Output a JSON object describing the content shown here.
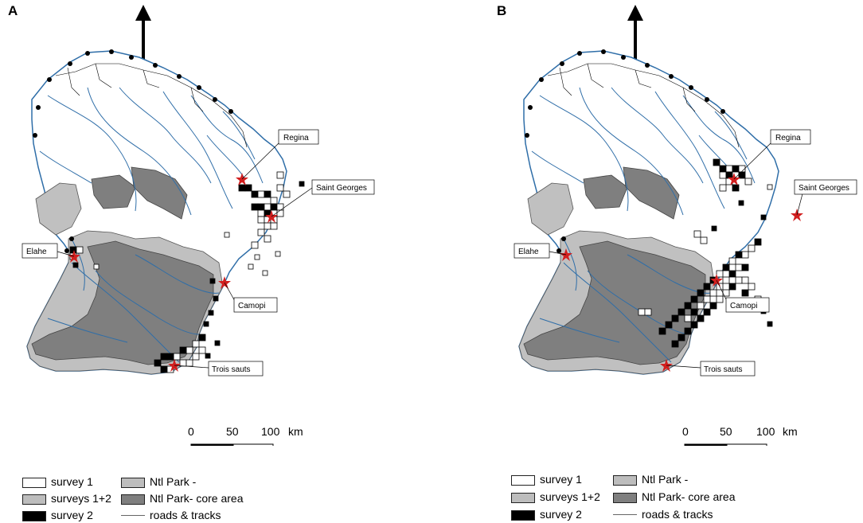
{
  "panels": [
    {
      "letter": "A",
      "places": [
        {
          "name": "Regina"
        },
        {
          "name": "Saint Georges"
        },
        {
          "name": "Elahe"
        },
        {
          "name": "Camopi"
        },
        {
          "name": "Trois sauts"
        }
      ],
      "scale": {
        "ticks": [
          "0",
          "50",
          "100"
        ],
        "unit": "km"
      },
      "legend": [
        {
          "label": "survey 1",
          "swatch": "#ffffff"
        },
        {
          "label": "surveys 1+2",
          "swatch": "#bdbdbd"
        },
        {
          "label": "survey 2",
          "swatch": "#000000"
        },
        {
          "label": "Ntl Park -",
          "swatch": "#bdbdbd"
        },
        {
          "label": "Ntl Park- core area",
          "swatch": "#7f7f7f"
        },
        {
          "label": "roads & tracks",
          "swatch": "line"
        }
      ]
    },
    {
      "letter": "B",
      "places": [
        {
          "name": "Regina"
        },
        {
          "name": "Saint Georges"
        },
        {
          "name": "Elahe"
        },
        {
          "name": "Camopi"
        },
        {
          "name": "Trois sauts"
        }
      ],
      "scale": {
        "ticks": [
          "0",
          "50",
          "100"
        ],
        "unit": "km"
      },
      "legend": [
        {
          "label": "survey 1",
          "swatch": "#ffffff"
        },
        {
          "label": "surveys 1+2",
          "swatch": "#bdbdbd"
        },
        {
          "label": "survey 2",
          "swatch": "#000000"
        },
        {
          "label": "Ntl Park -",
          "swatch": "#bdbdbd"
        },
        {
          "label": "Ntl Park- core area",
          "swatch": "#7f7f7f"
        },
        {
          "label": "roads & tracks",
          "swatch": "line"
        }
      ]
    }
  ],
  "colors": {
    "river": "#2f6ea8",
    "park": "#c0c0c0",
    "core": "#7f7f7f",
    "star": "#d21f1f"
  }
}
